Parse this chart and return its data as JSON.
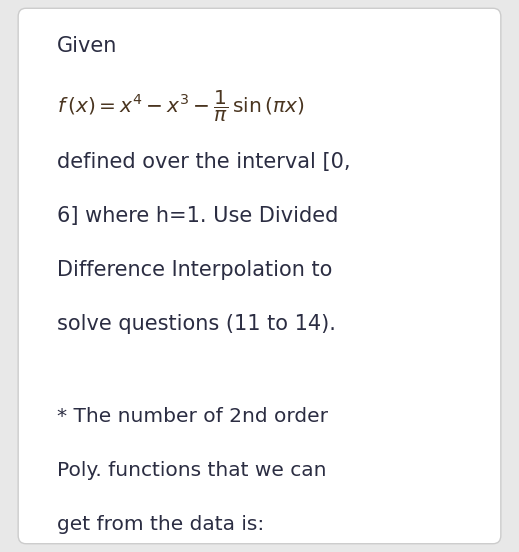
{
  "bg_color": "#e8e8e8",
  "card_color": "#ffffff",
  "border_color": "#cccccc",
  "text_color": "#2b2d42",
  "math_color": "#4a3520",
  "given_text": "Given",
  "formula_latex": "$f\\,(x) = x^4 - x^3 - \\dfrac{1}{\\pi}\\,\\mathrm{sin}\\,(\\pi x)$",
  "body_text_lines": [
    "defined over the interval [0,",
    "6] where h=1. Use Divided",
    "Difference Interpolation to",
    "solve questions (11 to 14)."
  ],
  "note_lines": [
    "* The number of 2nd order",
    "Poly. functions that we can",
    "get from the data is:"
  ],
  "given_fontsize": 15,
  "formula_fontsize": 14.5,
  "body_fontsize": 15,
  "note_fontsize": 14.5,
  "fig_width": 5.19,
  "fig_height": 5.52,
  "dpi": 100
}
